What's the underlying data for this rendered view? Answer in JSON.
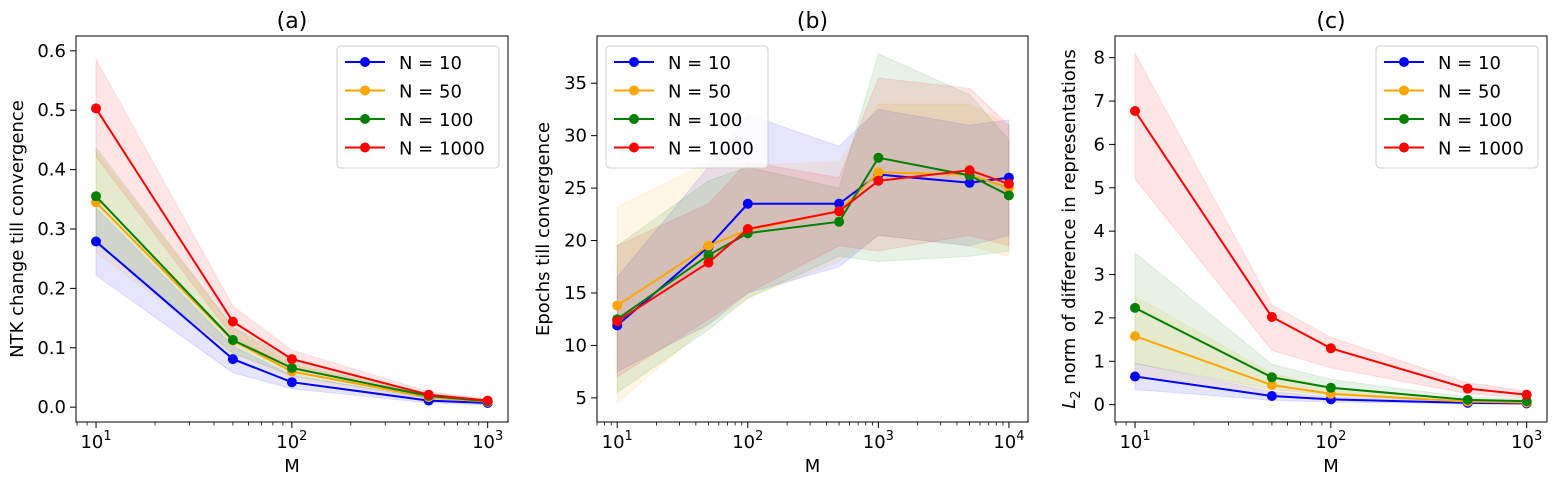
{
  "chart_data": [
    {
      "type": "line",
      "title": "(a)",
      "xlabel": "M",
      "ylabel": "NTK change till convergence",
      "xscale": "log",
      "xlim": [
        7.9,
        1270
      ],
      "ylim": [
        -0.025,
        0.625
      ],
      "xticks": [
        {
          "value": 10,
          "label": "10",
          "exp": "1"
        },
        {
          "value": 100,
          "label": "10",
          "exp": "2"
        },
        {
          "value": 1000,
          "label": "10",
          "exp": "3"
        }
      ],
      "yticks": [
        {
          "value": 0.0,
          "label": "0.0"
        },
        {
          "value": 0.1,
          "label": "0.1"
        },
        {
          "value": 0.2,
          "label": "0.2"
        },
        {
          "value": 0.3,
          "label": "0.3"
        },
        {
          "value": 0.4,
          "label": "0.4"
        },
        {
          "value": 0.5,
          "label": "0.5"
        },
        {
          "value": 0.6,
          "label": "0.6"
        }
      ],
      "legend": "top-right",
      "x": [
        10,
        50,
        100,
        500,
        1000
      ],
      "series": [
        {
          "name": "N = 10",
          "color": "#0000ff",
          "values": [
            0.279,
            0.081,
            0.042,
            0.011,
            0.007
          ],
          "lower": [
            0.222,
            0.058,
            0.031,
            0.007,
            0.004
          ],
          "upper": [
            0.335,
            0.103,
            0.053,
            0.015,
            0.01
          ]
        },
        {
          "name": "N = 50",
          "color": "#ffa500",
          "values": [
            0.345,
            0.112,
            0.06,
            0.017,
            0.009
          ],
          "lower": [
            0.26,
            0.09,
            0.048,
            0.013,
            0.006
          ],
          "upper": [
            0.43,
            0.134,
            0.072,
            0.021,
            0.012
          ]
        },
        {
          "name": "N = 100",
          "color": "#008000",
          "values": [
            0.355,
            0.113,
            0.066,
            0.019,
            0.01
          ],
          "lower": [
            0.275,
            0.091,
            0.053,
            0.015,
            0.007
          ],
          "upper": [
            0.437,
            0.135,
            0.079,
            0.023,
            0.013
          ]
        },
        {
          "name": "N = 1000",
          "color": "#ff0000",
          "values": [
            0.503,
            0.144,
            0.081,
            0.021,
            0.011
          ],
          "lower": [
            0.422,
            0.118,
            0.066,
            0.016,
            0.008
          ],
          "upper": [
            0.586,
            0.17,
            0.096,
            0.026,
            0.014
          ]
        }
      ]
    },
    {
      "type": "line",
      "title": "(b)",
      "xlabel": "M",
      "ylabel": "Epochs till convergence",
      "xscale": "log",
      "xlim": [
        7.0,
        14000
      ],
      "ylim": [
        2.7,
        39.5
      ],
      "xticks": [
        {
          "value": 10,
          "label": "10",
          "exp": "1"
        },
        {
          "value": 100,
          "label": "10",
          "exp": "2"
        },
        {
          "value": 1000,
          "label": "10",
          "exp": "3"
        },
        {
          "value": 10000,
          "label": "10",
          "exp": "4"
        }
      ],
      "yticks": [
        {
          "value": 5,
          "label": "5"
        },
        {
          "value": 10,
          "label": "10"
        },
        {
          "value": 15,
          "label": "15"
        },
        {
          "value": 20,
          "label": "20"
        },
        {
          "value": 25,
          "label": "25"
        },
        {
          "value": 30,
          "label": "30"
        },
        {
          "value": 35,
          "label": "35"
        }
      ],
      "legend": "top-left",
      "x": [
        10,
        50,
        100,
        500,
        1000,
        5000,
        10000
      ],
      "series": [
        {
          "name": "N = 10",
          "color": "#0000ff",
          "values": [
            11.9,
            19.4,
            23.5,
            23.5,
            26.3,
            25.5,
            26.0
          ],
          "lower": [
            7.5,
            12.0,
            15.0,
            17.5,
            20.5,
            19.5,
            20.5
          ],
          "upper": [
            16.5,
            27.0,
            32.0,
            29.0,
            32.5,
            31.0,
            31.5
          ]
        },
        {
          "name": "N = 50",
          "color": "#ffa500",
          "values": [
            13.8,
            19.5,
            21.0,
            22.8,
            26.5,
            26.3,
            25.0
          ],
          "lower": [
            4.5,
            12.0,
            14.5,
            18.0,
            20.5,
            19.5,
            18.5
          ],
          "upper": [
            23.2,
            27.5,
            27.2,
            27.5,
            33.0,
            33.0,
            31.0
          ]
        },
        {
          "name": "N = 100",
          "color": "#008000",
          "values": [
            12.5,
            18.6,
            20.7,
            21.8,
            27.9,
            26.2,
            24.3
          ],
          "lower": [
            5.5,
            11.5,
            14.5,
            18.5,
            18.0,
            18.5,
            19.0
          ],
          "upper": [
            19.5,
            25.7,
            27.0,
            25.0,
            37.8,
            33.9,
            29.6
          ]
        },
        {
          "name": "N = 1000",
          "color": "#ff0000",
          "values": [
            12.3,
            17.9,
            21.1,
            22.8,
            25.7,
            26.7,
            25.4
          ],
          "lower": [
            7.0,
            12.5,
            15.0,
            19.5,
            19.0,
            20.5,
            19.5
          ],
          "upper": [
            19.5,
            23.5,
            27.5,
            26.0,
            35.5,
            34.5,
            31.0
          ]
        }
      ]
    },
    {
      "type": "line",
      "title": "(c)",
      "xlabel": "M",
      "ylabel": "norm of difference in representations",
      "ylabel_math": "L",
      "ylabel_sub": "2",
      "xscale": "log",
      "xlim": [
        7.9,
        1270
      ],
      "ylim": [
        -0.4,
        8.5
      ],
      "xticks": [
        {
          "value": 10,
          "label": "10",
          "exp": "1"
        },
        {
          "value": 100,
          "label": "10",
          "exp": "2"
        },
        {
          "value": 1000,
          "label": "10",
          "exp": "3"
        }
      ],
      "yticks": [
        {
          "value": 0,
          "label": "0"
        },
        {
          "value": 1,
          "label": "1"
        },
        {
          "value": 2,
          "label": "2"
        },
        {
          "value": 3,
          "label": "3"
        },
        {
          "value": 4,
          "label": "4"
        },
        {
          "value": 5,
          "label": "5"
        },
        {
          "value": 6,
          "label": "6"
        },
        {
          "value": 7,
          "label": "7"
        },
        {
          "value": 8,
          "label": "8"
        }
      ],
      "legend": "top-right",
      "x": [
        10,
        50,
        100,
        500,
        1000
      ],
      "series": [
        {
          "name": "N = 10",
          "color": "#0000ff",
          "values": [
            0.65,
            0.2,
            0.12,
            0.04,
            0.03
          ],
          "lower": [
            0.35,
            0.1,
            0.06,
            0.02,
            0.01
          ],
          "upper": [
            0.95,
            0.3,
            0.18,
            0.06,
            0.05
          ]
        },
        {
          "name": "N = 50",
          "color": "#ffa500",
          "values": [
            1.58,
            0.45,
            0.25,
            0.07,
            0.05
          ],
          "lower": [
            0.65,
            0.2,
            0.12,
            0.03,
            0.02
          ],
          "upper": [
            2.5,
            0.72,
            0.4,
            0.12,
            0.09
          ]
        },
        {
          "name": "N = 100",
          "color": "#008000",
          "values": [
            2.23,
            0.63,
            0.39,
            0.11,
            0.08
          ],
          "lower": [
            0.95,
            0.35,
            0.22,
            0.06,
            0.04
          ],
          "upper": [
            3.5,
            0.93,
            0.58,
            0.17,
            0.13
          ]
        },
        {
          "name": "N = 1000",
          "color": "#ff0000",
          "values": [
            6.77,
            2.02,
            1.3,
            0.37,
            0.23
          ],
          "lower": [
            5.2,
            1.25,
            0.85,
            0.25,
            0.15
          ],
          "upper": [
            8.1,
            2.3,
            1.55,
            0.5,
            0.32
          ]
        }
      ]
    }
  ]
}
